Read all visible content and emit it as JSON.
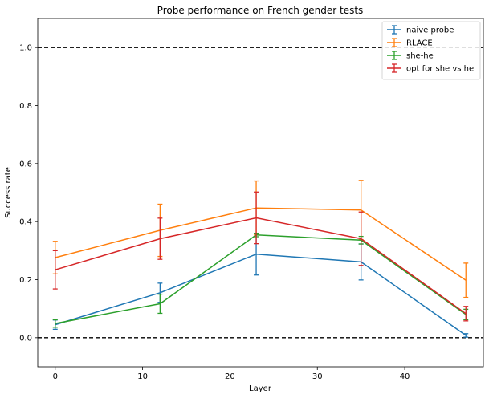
{
  "chart_data": {
    "type": "line",
    "title": "Probe performance on French gender tests",
    "xlabel": "Layer",
    "ylabel": "Success rate",
    "xlim": [
      -2,
      49
    ],
    "ylim": [
      -0.1,
      1.1
    ],
    "xticks": [
      0,
      10,
      20,
      30,
      40
    ],
    "yticks": [
      0.0,
      0.2,
      0.4,
      0.6,
      0.8,
      1.0
    ],
    "ytick_labels": [
      "0.0",
      "0.2",
      "0.4",
      "0.6",
      "0.8",
      "1.0"
    ],
    "reference_lines": [
      0.0,
      1.0
    ],
    "grid": false,
    "legend_position": "top-right",
    "x": [
      0,
      12,
      23,
      35,
      47
    ],
    "series": [
      {
        "name": "naive probe",
        "color": "#1f77b4",
        "values": [
          0.045,
          0.155,
          0.288,
          0.261,
          0.008
        ],
        "err": [
          0.016,
          0.033,
          0.072,
          0.062,
          0.006
        ]
      },
      {
        "name": "RLACE",
        "color": "#ff7f0e",
        "values": [
          0.276,
          0.37,
          0.447,
          0.44,
          0.198
        ],
        "err": [
          0.056,
          0.09,
          0.093,
          0.102,
          0.059
        ]
      },
      {
        "name": "she-he",
        "color": "#2ca02c",
        "values": [
          0.049,
          0.117,
          0.354,
          0.336,
          0.08
        ],
        "err": [
          0.013,
          0.033,
          0.006,
          0.013,
          0.018
        ]
      },
      {
        "name": "opt for she vs he",
        "color": "#d62728",
        "values": [
          0.234,
          0.341,
          0.413,
          0.341,
          0.083
        ],
        "err": [
          0.066,
          0.071,
          0.089,
          0.092,
          0.025
        ]
      }
    ]
  }
}
